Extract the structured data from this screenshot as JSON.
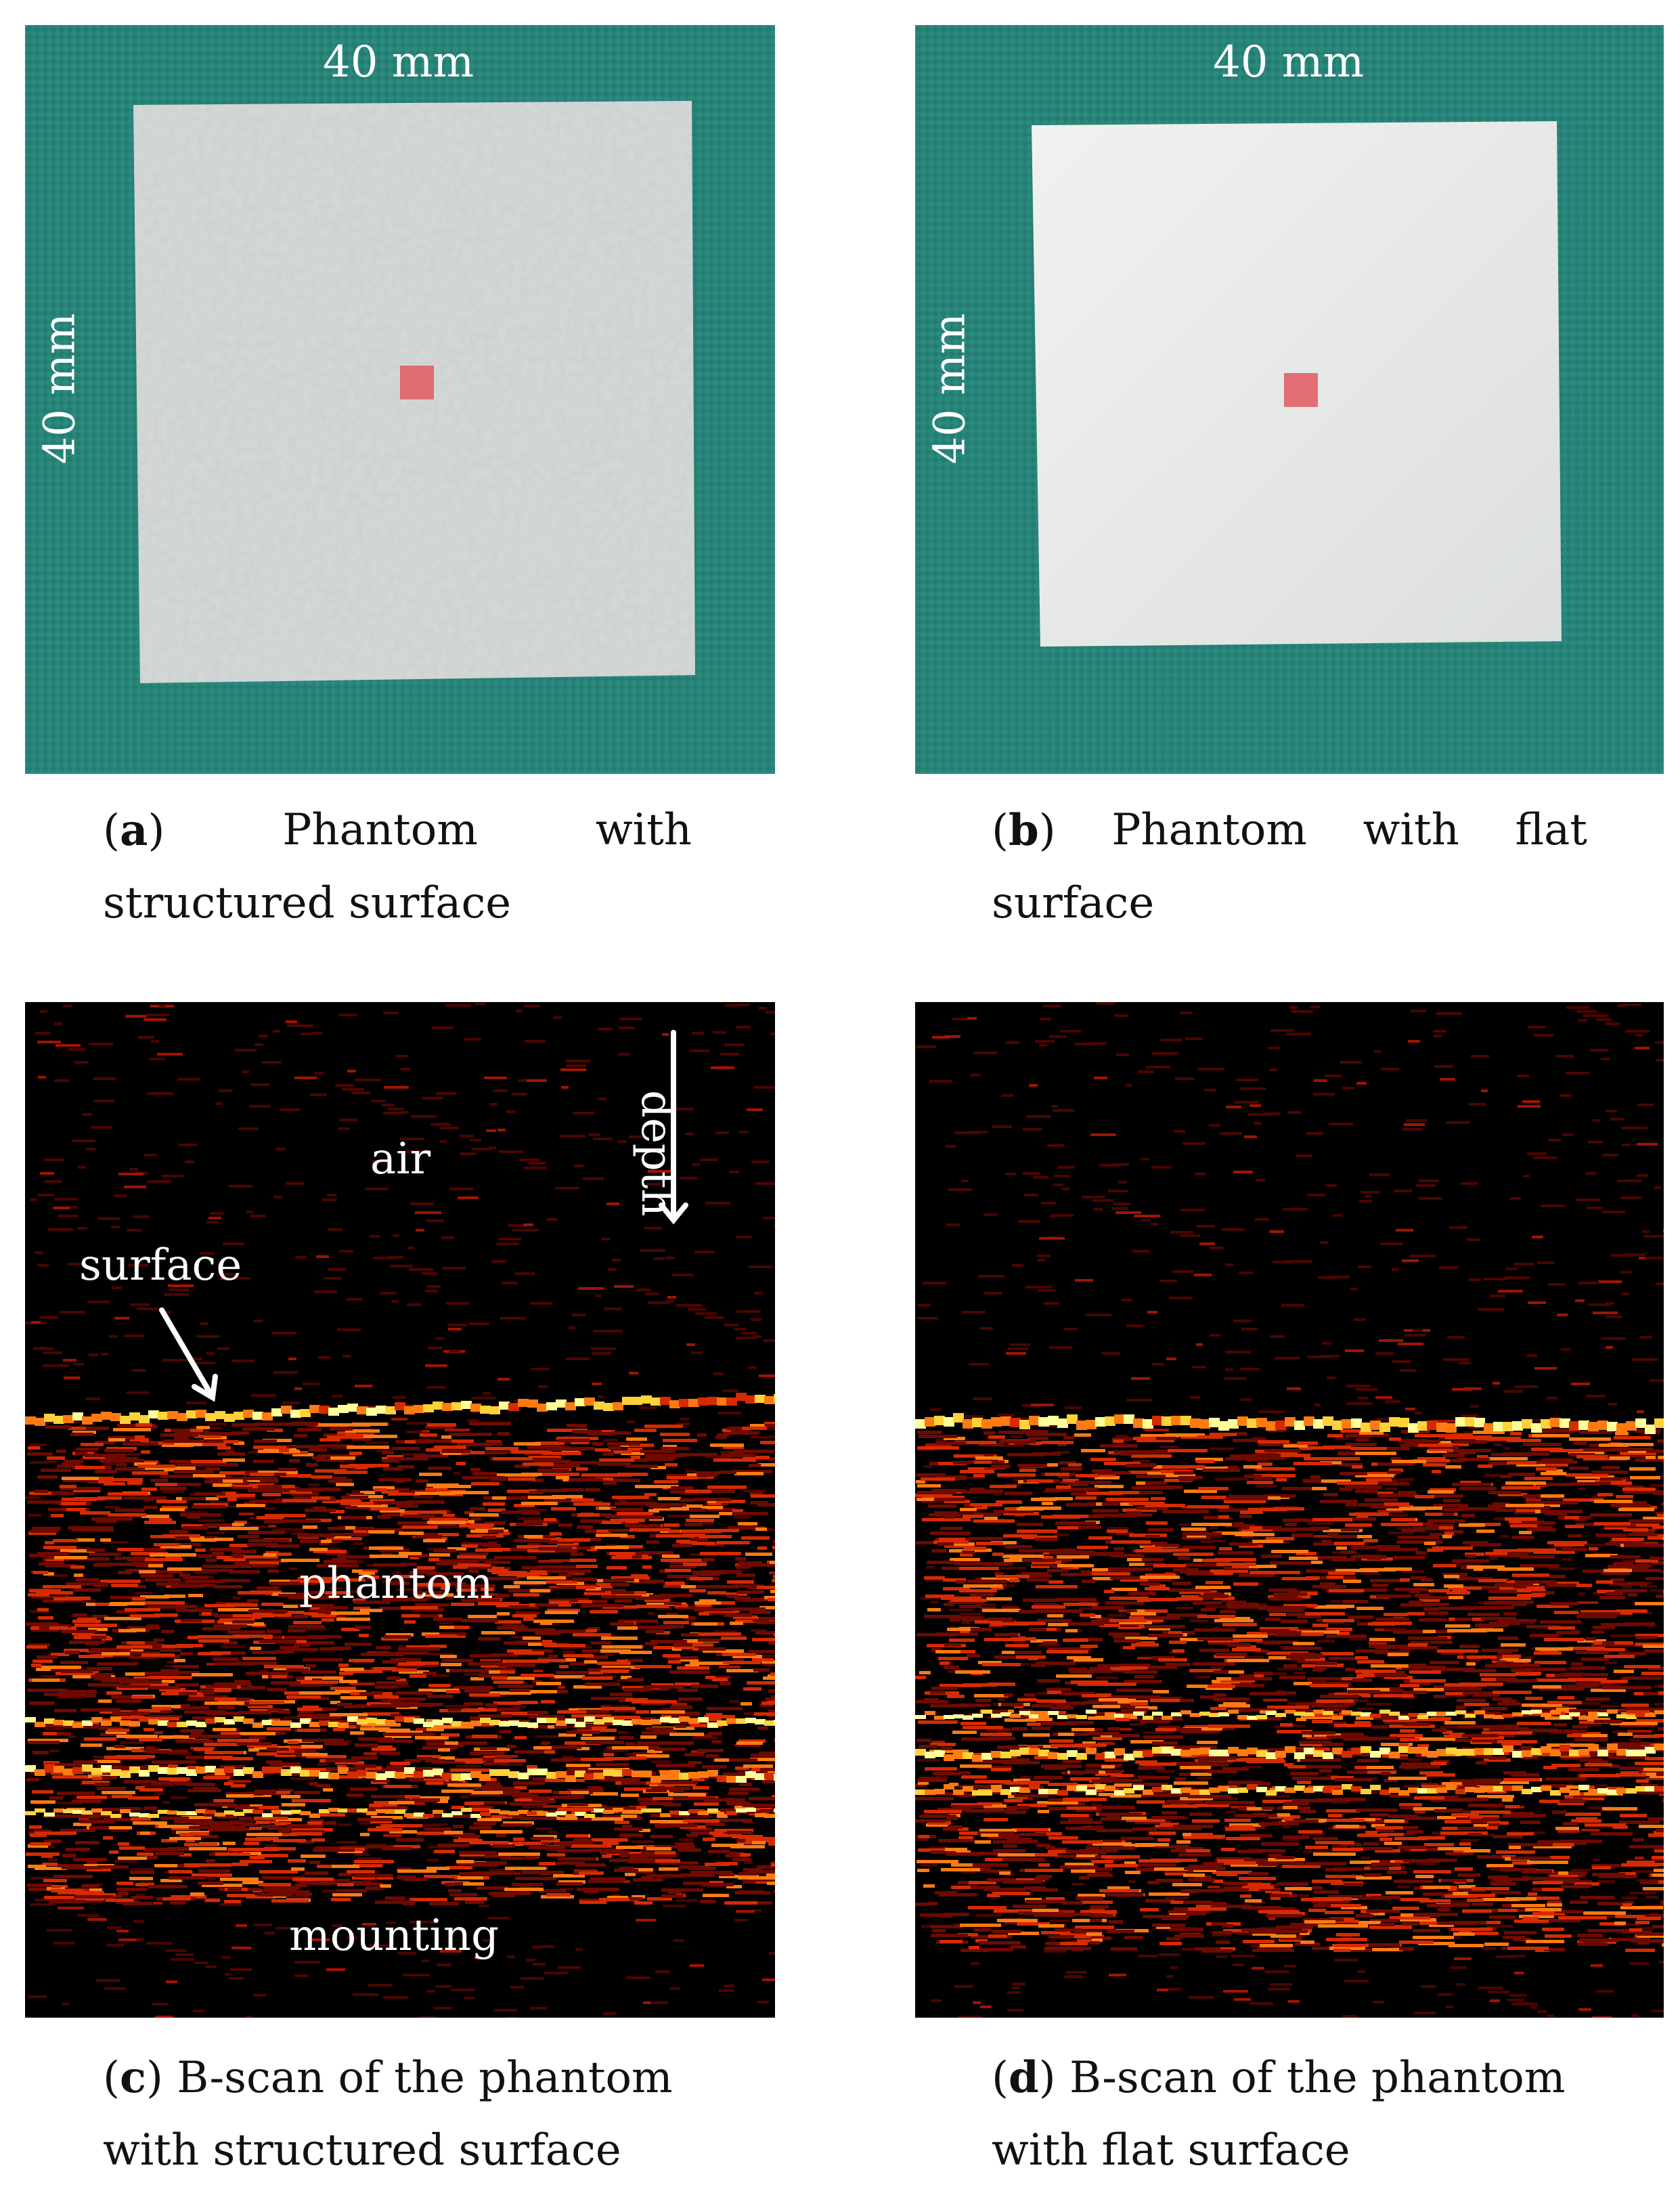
{
  "panels": {
    "a": {
      "dim_top": "40 mm",
      "dim_left": "40 mm",
      "caption_label": "a",
      "caption_word1": "Phantom",
      "caption_word2": "with",
      "caption_line2": "structured surface"
    },
    "b": {
      "dim_top": "40 mm",
      "dim_left": "40 mm",
      "caption_label": "b",
      "caption_word1": "Phantom",
      "caption_word2": "with",
      "caption_word3": "flat",
      "caption_line2": "surface"
    },
    "c": {
      "label_air": "air",
      "label_depth": "depth",
      "label_surface": "surface",
      "label_phantom": "phantom",
      "label_mounting": "mounting",
      "caption_label": "c",
      "caption_line1_rest": " B-scan of the phantom",
      "caption_line2": "with structured surface"
    },
    "d": {
      "caption_label": "d",
      "caption_line1_rest": " B-scan of the phantom",
      "caption_line2": "with flat surface"
    }
  },
  "colors": {
    "background_cloth": "#2a8a7e",
    "phantom_white": "#e8ebea",
    "target_red": "#e06066",
    "scan_bright": "#ffff80",
    "scan_mid": "#ff6a00",
    "scan_dark": "#8a0a00"
  }
}
